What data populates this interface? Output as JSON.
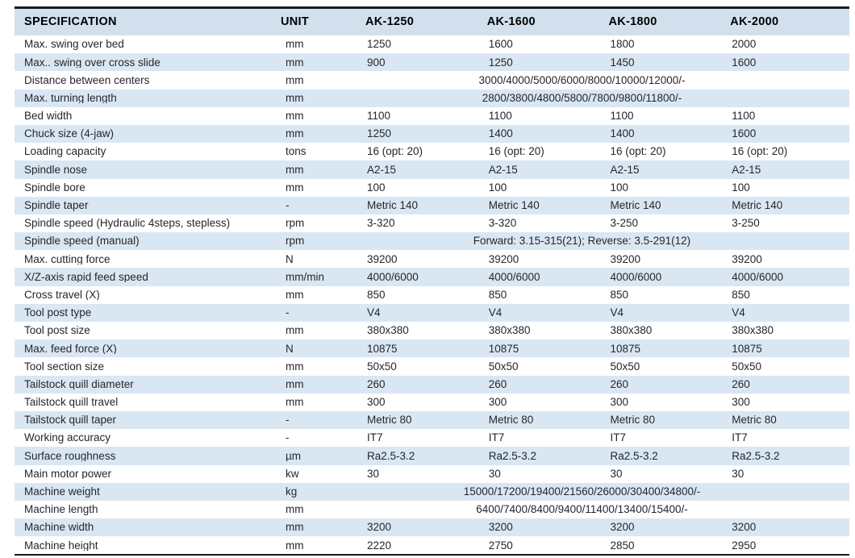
{
  "table": {
    "columns": [
      "SPECIFICATION",
      "UNIT",
      "AK-1250",
      "AK-1600",
      "AK-1800",
      "AK-2000"
    ],
    "rows": [
      {
        "spec": "Max. swing over bed",
        "unit": "mm",
        "values": [
          "1250",
          "1600",
          "1800",
          "2000"
        ]
      },
      {
        "spec": "Max.. swing over cross slide",
        "unit": "mm",
        "values": [
          "900",
          "1250",
          "1450",
          "1600"
        ]
      },
      {
        "spec": "Distance between centers",
        "unit": "mm",
        "merged": "3000/4000/5000/6000/8000/10000/12000/-"
      },
      {
        "spec": "Max. turning length",
        "unit": "mm",
        "merged": "2800/3800/4800/5800/7800/9800/11800/-"
      },
      {
        "spec": "Bed width",
        "unit": "mm",
        "values": [
          "1100",
          "1100",
          "1100",
          "1100"
        ]
      },
      {
        "spec": "Chuck size (4-jaw)",
        "unit": "mm",
        "values": [
          "1250",
          "1400",
          "1400",
          "1600"
        ]
      },
      {
        "spec": "Loading capacity",
        "unit": "tons",
        "values": [
          "16 (opt: 20)",
          "16 (opt: 20)",
          "16 (opt: 20)",
          "16 (opt: 20)"
        ]
      },
      {
        "spec": "Spindle nose",
        "unit": "mm",
        "values": [
          "A2-15",
          "A2-15",
          "A2-15",
          "A2-15"
        ]
      },
      {
        "spec": "Spindle bore",
        "unit": "mm",
        "values": [
          "100",
          "100",
          "100",
          "100"
        ]
      },
      {
        "spec": "Spindle taper",
        "unit": "-",
        "values": [
          "Metric 140",
          "Metric 140",
          "Metric 140",
          "Metric 140"
        ]
      },
      {
        "spec": "Spindle speed (Hydraulic 4steps, stepless)",
        "unit": "rpm",
        "values": [
          "3-320",
          "3-320",
          "3-250",
          "3-250"
        ]
      },
      {
        "spec": "Spindle speed (manual)",
        "unit": "rpm",
        "merged": "Forward: 3.15-315(21); Reverse: 3.5-291(12)"
      },
      {
        "spec": "Max. cutting force",
        "unit": "N",
        "values": [
          "39200",
          "39200",
          "39200",
          "39200"
        ]
      },
      {
        "spec": "X/Z-axis rapid feed speed",
        "unit": "mm/min",
        "values": [
          "4000/6000",
          "4000/6000",
          "4000/6000",
          "4000/6000"
        ]
      },
      {
        "spec": "Cross travel (X)",
        "unit": "mm",
        "values": [
          "850",
          "850",
          "850",
          "850"
        ]
      },
      {
        "spec": "Tool post type",
        "unit": "-",
        "values": [
          "V4",
          "V4",
          "V4",
          "V4"
        ]
      },
      {
        "spec": "Tool post size",
        "unit": "mm",
        "values": [
          "380x380",
          "380x380",
          "380x380",
          "380x380"
        ]
      },
      {
        "spec": "Max. feed force (X)",
        "unit": "N",
        "values": [
          "10875",
          "10875",
          "10875",
          "10875"
        ]
      },
      {
        "spec": "Tool section size",
        "unit": "mm",
        "values": [
          "50x50",
          "50x50",
          "50x50",
          "50x50"
        ]
      },
      {
        "spec": "Tailstock quill diameter",
        "unit": "mm",
        "values": [
          "260",
          "260",
          "260",
          "260"
        ]
      },
      {
        "spec": "Tailstock quill travel",
        "unit": "mm",
        "values": [
          "300",
          "300",
          "300",
          "300"
        ]
      },
      {
        "spec": "Tailstock quill taper",
        "unit": "-",
        "values": [
          "Metric 80",
          "Metric 80",
          "Metric 80",
          "Metric 80"
        ]
      },
      {
        "spec": "Working accuracy",
        "unit": "-",
        "values": [
          "IT7",
          "IT7",
          "IT7",
          "IT7"
        ]
      },
      {
        "spec": "Surface roughness",
        "unit": "µm",
        "values": [
          "Ra2.5-3.2",
          "Ra2.5-3.2",
          "Ra2.5-3.2",
          "Ra2.5-3.2"
        ]
      },
      {
        "spec": "Main motor power",
        "unit": "kw",
        "values": [
          "30",
          "30",
          "30",
          "30"
        ]
      },
      {
        "spec": "Machine weight",
        "unit": "kg",
        "merged": "15000/17200/19400/21560/26000/30400/34800/-"
      },
      {
        "spec": "Machine length",
        "unit": "mm",
        "merged": "6400/7400/8400/9400/11400/13400/15400/-"
      },
      {
        "spec": "Machine width",
        "unit": "mm",
        "values": [
          "3200",
          "3200",
          "3200",
          "3200"
        ]
      },
      {
        "spec": "Machine height",
        "unit": "mm",
        "values": [
          "2220",
          "2750",
          "2850",
          "2950"
        ]
      }
    ],
    "colors": {
      "header_bg": "#d2e0ee",
      "row_alt_bg": "#d9e7f3",
      "row_bg": "#ffffff",
      "border_dark": "#1b1b1b",
      "text": "#26262c",
      "header_text": "#000000"
    }
  }
}
